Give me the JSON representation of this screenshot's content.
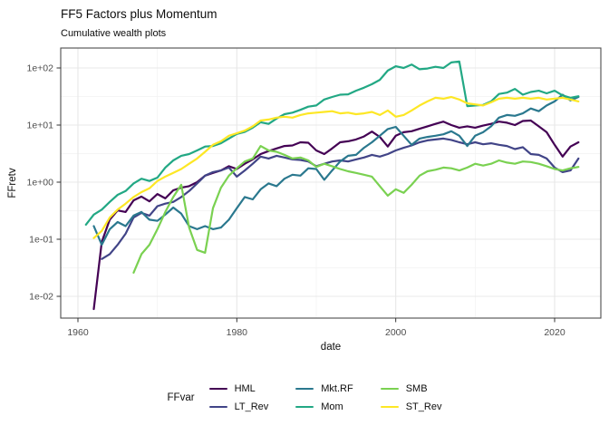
{
  "header": {
    "title": "FF5 Factors plus Momentum",
    "subtitle": "Cumulative wealth plots"
  },
  "chart_data": {
    "type": "line",
    "title": "FF5 Factors plus Momentum",
    "subtitle": "Cumulative wealth plots",
    "xlabel": "date",
    "ylabel": "FFretv",
    "legend_title": "FFvar",
    "legend_position": "bottom",
    "grid": true,
    "y_scale": "log10",
    "x_ticks": [
      1960,
      1980,
      2000,
      2020
    ],
    "x_minor_ticks": [
      1970,
      1990,
      2010
    ],
    "y_tick_labels": [
      "1e-02",
      "1e-01",
      "1e+00",
      "1e+01",
      "1e+02"
    ],
    "y_tick_values": [
      0.01,
      0.1,
      1,
      10,
      100
    ],
    "xlim": [
      1957.8,
      2025.8
    ],
    "ylim": [
      0.0042,
      224
    ],
    "x": [
      1961,
      1962,
      1963,
      1964,
      1965,
      1966,
      1967,
      1968,
      1969,
      1970,
      1971,
      1972,
      1973,
      1974,
      1975,
      1976,
      1977,
      1978,
      1979,
      1980,
      1981,
      1982,
      1983,
      1984,
      1985,
      1986,
      1987,
      1988,
      1989,
      1990,
      1991,
      1992,
      1993,
      1994,
      1995,
      1996,
      1997,
      1998,
      1999,
      2000,
      2001,
      2002,
      2003,
      2004,
      2005,
      2006,
      2007,
      2008,
      2009,
      2010,
      2011,
      2012,
      2013,
      2014,
      2015,
      2016,
      2017,
      2018,
      2019,
      2020,
      2021,
      2022,
      2023
    ],
    "series": [
      {
        "name": "HML",
        "color": "#440154",
        "values": [
          null,
          0.006,
          0.09,
          0.22,
          0.32,
          0.3,
          0.48,
          0.56,
          0.46,
          0.62,
          0.52,
          0.72,
          0.8,
          0.85,
          1.0,
          1.3,
          1.45,
          1.6,
          1.9,
          1.7,
          2.1,
          2.5,
          3.1,
          3.5,
          3.9,
          4.3,
          4.4,
          5.0,
          4.9,
          3.6,
          3.1,
          3.9,
          5.0,
          5.2,
          5.6,
          6.3,
          7.7,
          6.2,
          4.2,
          6.5,
          7.5,
          7.8,
          8.6,
          9.5,
          10.5,
          11.5,
          10.0,
          9.0,
          9.5,
          9.0,
          9.8,
          10.5,
          11.5,
          11.0,
          10.0,
          11.8,
          12.0,
          9.5,
          7.5,
          4.5,
          2.8,
          4.2,
          5.0
        ]
      },
      {
        "name": "LT_Rev",
        "color": "#414487",
        "values": [
          null,
          null,
          0.045,
          0.055,
          0.08,
          0.125,
          0.24,
          0.29,
          0.26,
          0.38,
          0.42,
          0.45,
          0.55,
          0.7,
          0.95,
          1.3,
          1.5,
          1.6,
          1.8,
          1.25,
          1.6,
          2.1,
          2.8,
          2.6,
          2.9,
          2.7,
          2.5,
          2.45,
          2.3,
          1.9,
          2.1,
          2.3,
          2.4,
          2.3,
          2.5,
          2.7,
          3.0,
          2.8,
          3.1,
          3.6,
          4.0,
          4.4,
          5.0,
          5.4,
          5.6,
          5.8,
          5.5,
          5.0,
          4.6,
          5.0,
          4.6,
          4.8,
          4.5,
          4.3,
          3.8,
          4.1,
          3.1,
          3.0,
          2.6,
          1.8,
          1.5,
          1.6,
          2.6
        ]
      },
      {
        "name": "Mkt.RF",
        "color": "#2A788E",
        "values": [
          null,
          0.17,
          0.08,
          0.15,
          0.2,
          0.17,
          0.26,
          0.3,
          0.22,
          0.21,
          0.27,
          0.36,
          0.28,
          0.17,
          0.15,
          0.17,
          0.15,
          0.16,
          0.22,
          0.35,
          0.55,
          0.5,
          0.75,
          0.95,
          0.85,
          1.15,
          1.35,
          1.3,
          1.75,
          1.7,
          1.1,
          1.6,
          2.3,
          2.9,
          3.0,
          4.0,
          5.0,
          6.5,
          8.5,
          9.3,
          6.5,
          4.5,
          5.8,
          6.2,
          6.5,
          6.9,
          7.8,
          6.5,
          4.3,
          6.5,
          7.5,
          9.5,
          13.5,
          15.0,
          14.5,
          16.0,
          19.5,
          17.5,
          22.0,
          26.0,
          34.0,
          27.0,
          31.0
        ]
      },
      {
        "name": "Mom",
        "color": "#22A884",
        "values": [
          0.18,
          0.27,
          0.33,
          0.45,
          0.6,
          0.7,
          0.95,
          1.15,
          1.05,
          1.2,
          1.8,
          2.4,
          2.9,
          3.1,
          3.6,
          4.2,
          4.3,
          4.8,
          5.8,
          7.0,
          7.6,
          9.0,
          11.2,
          10.5,
          13.0,
          15.5,
          16.5,
          18.5,
          21.0,
          22.0,
          28.0,
          31.0,
          34.0,
          34.5,
          40.0,
          45.0,
          52.0,
          62.0,
          90.0,
          107,
          100,
          115,
          95,
          98,
          105,
          100,
          125,
          130,
          21.5,
          22.0,
          22.5,
          26.0,
          35.0,
          37.0,
          43.0,
          34.0,
          38.0,
          40.0,
          36.0,
          40.0,
          33.0,
          30.0,
          32.0
        ]
      },
      {
        "name": "SMB",
        "color": "#7AD151",
        "values": [
          null,
          null,
          null,
          null,
          null,
          null,
          0.026,
          0.055,
          0.08,
          0.15,
          0.3,
          0.55,
          0.9,
          0.16,
          0.065,
          0.058,
          0.35,
          0.8,
          1.3,
          1.75,
          2.3,
          2.6,
          4.3,
          3.6,
          3.4,
          3.0,
          2.6,
          2.7,
          2.4,
          1.85,
          2.1,
          1.9,
          1.7,
          1.55,
          1.45,
          1.35,
          1.25,
          0.85,
          0.58,
          0.75,
          0.65,
          0.9,
          1.3,
          1.55,
          1.65,
          1.8,
          1.75,
          1.6,
          1.8,
          2.1,
          1.95,
          2.1,
          2.4,
          2.2,
          2.1,
          2.3,
          2.25,
          2.1,
          1.9,
          1.7,
          1.6,
          1.75,
          1.85
        ]
      },
      {
        "name": "ST_Rev",
        "color": "#FDE725",
        "values": [
          null,
          0.105,
          0.14,
          0.24,
          0.33,
          0.42,
          0.55,
          0.67,
          0.78,
          1.05,
          1.25,
          1.45,
          1.7,
          2.1,
          2.6,
          3.4,
          4.5,
          5.2,
          6.5,
          7.2,
          8.0,
          9.5,
          12.0,
          12.5,
          13.5,
          14.0,
          13.5,
          15.0,
          16.0,
          16.5,
          17.0,
          17.5,
          16.0,
          16.5,
          15.5,
          16.0,
          17.0,
          15.0,
          18.0,
          14.0,
          15.0,
          18.0,
          22.0,
          26.0,
          30.0,
          29.0,
          31.0,
          28.0,
          24.0,
          23.0,
          22.0,
          25.0,
          29.0,
          30.0,
          29.0,
          30.0,
          29.0,
          30.0,
          28.0,
          29.0,
          30.0,
          28.0,
          26.0
        ]
      }
    ],
    "style": {
      "grid_major_color": "#e8e8e8",
      "grid_minor_color": "#f2f2f2",
      "panel_border_color": "#4d4d4d",
      "tick_label_color": "#4d4d4d"
    }
  }
}
